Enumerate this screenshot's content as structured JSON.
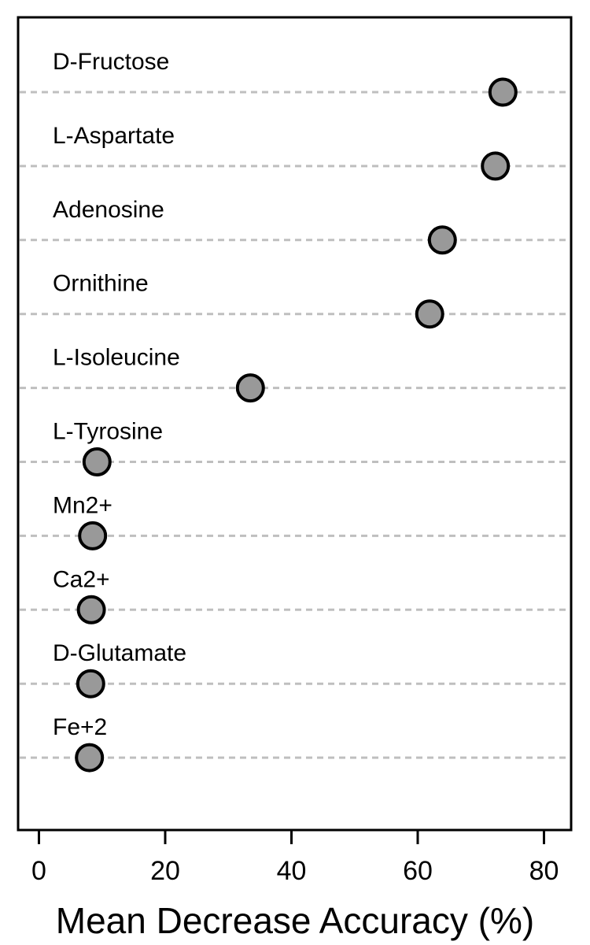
{
  "chart_data": {
    "type": "scatter",
    "title": "",
    "xlabel": "Mean Decrease Accuracy (%)",
    "ylabel": "",
    "xlim": [
      -3.3,
      84.3
    ],
    "x_ticks": [
      "0",
      "20",
      "40",
      "60",
      "80"
    ],
    "grid": "dashed horizontal lines at each item",
    "categories": [
      "D-Fructose",
      "L-Aspartate",
      "Adenosine",
      "Ornithine",
      "L-Isoleucine",
      "L-Tyrosine",
      "Mn2+",
      "Ca2+",
      "D-Glutamate",
      "Fe+2"
    ],
    "values": [
      73.5,
      72.3,
      63.9,
      61.9,
      33.5,
      9.2,
      8.5,
      8.3,
      8.2,
      8.0
    ],
    "marker_fill": "#999999",
    "marker_edge": "#000000",
    "grid_color": "#bfbfbf"
  }
}
